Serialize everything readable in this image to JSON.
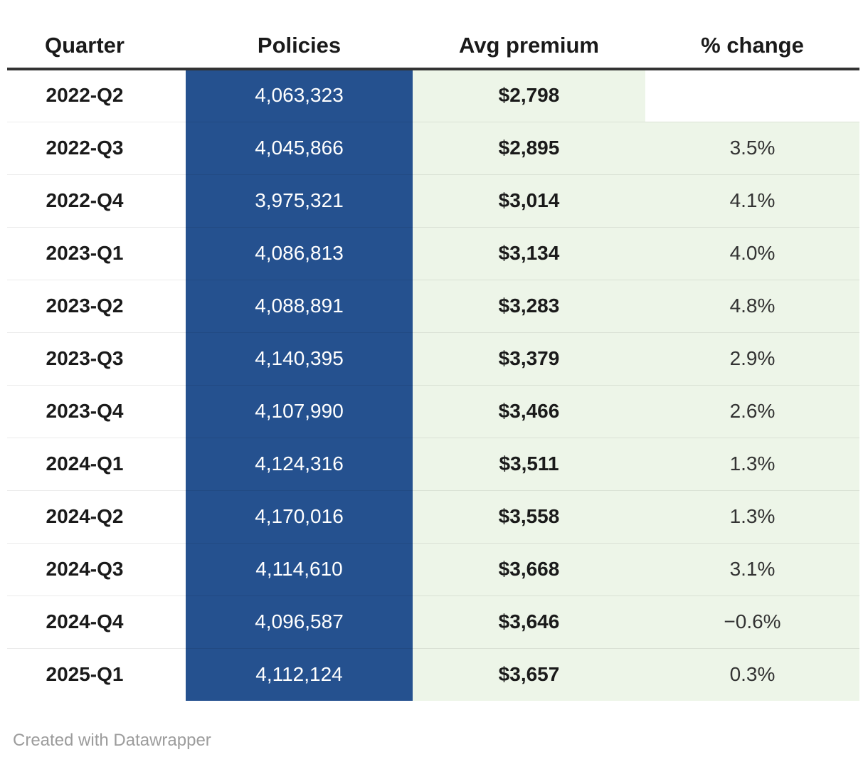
{
  "table": {
    "columns": [
      {
        "id": "quarter",
        "label": "Quarter"
      },
      {
        "id": "policies",
        "label": "Policies"
      },
      {
        "id": "avg_premium",
        "label": "Avg premium"
      },
      {
        "id": "pct_change",
        "label": "% change"
      }
    ],
    "rows": [
      {
        "quarter": "2022-Q2",
        "policies": "4,063,323",
        "avg_premium": "$2,798",
        "pct_change": ""
      },
      {
        "quarter": "2022-Q3",
        "policies": "4,045,866",
        "avg_premium": "$2,895",
        "pct_change": "3.5%"
      },
      {
        "quarter": "2022-Q4",
        "policies": "3,975,321",
        "avg_premium": "$3,014",
        "pct_change": "4.1%"
      },
      {
        "quarter": "2023-Q1",
        "policies": "4,086,813",
        "avg_premium": "$3,134",
        "pct_change": "4.0%"
      },
      {
        "quarter": "2023-Q2",
        "policies": "4,088,891",
        "avg_premium": "$3,283",
        "pct_change": "4.8%"
      },
      {
        "quarter": "2023-Q3",
        "policies": "4,140,395",
        "avg_premium": "$3,379",
        "pct_change": "2.9%"
      },
      {
        "quarter": "2023-Q4",
        "policies": "4,107,990",
        "avg_premium": "$3,466",
        "pct_change": "2.6%"
      },
      {
        "quarter": "2024-Q1",
        "policies": "4,124,316",
        "avg_premium": "$3,511",
        "pct_change": "1.3%"
      },
      {
        "quarter": "2024-Q2",
        "policies": "4,170,016",
        "avg_premium": "$3,558",
        "pct_change": "1.3%"
      },
      {
        "quarter": "2024-Q3",
        "policies": "4,114,610",
        "avg_premium": "$3,668",
        "pct_change": "3.1%"
      },
      {
        "quarter": "2024-Q4",
        "policies": "4,096,587",
        "avg_premium": "$3,646",
        "pct_change": "−0.6%"
      },
      {
        "quarter": "2025-Q1",
        "policies": "4,112,124",
        "avg_premium": "$3,657",
        "pct_change": "0.3%"
      }
    ]
  },
  "footer": {
    "attribution": "Created with Datawrapper"
  },
  "colors": {
    "policies_fill": "#25518f",
    "premium_fill": "#edf5e8",
    "header_rule": "#333333",
    "policies_text": "#ffffff",
    "body_text": "#1a1a1a",
    "pct_text": "#333333",
    "attribution_text": "#9c9c9c"
  },
  "chart_data": {
    "type": "table",
    "columns": [
      "Quarter",
      "Policies",
      "Avg premium",
      "% change"
    ],
    "rows": [
      [
        "2022-Q2",
        4063323,
        2798,
        null
      ],
      [
        "2022-Q3",
        4045866,
        2895,
        3.5
      ],
      [
        "2022-Q4",
        3975321,
        3014,
        4.1
      ],
      [
        "2023-Q1",
        4086813,
        3134,
        4.0
      ],
      [
        "2023-Q2",
        4088891,
        3283,
        4.8
      ],
      [
        "2023-Q3",
        4140395,
        3379,
        2.9
      ],
      [
        "2023-Q4",
        4107990,
        3466,
        2.6
      ],
      [
        "2024-Q1",
        4124316,
        3511,
        1.3
      ],
      [
        "2024-Q2",
        4170016,
        3558,
        1.3
      ],
      [
        "2024-Q3",
        4114610,
        3668,
        3.1
      ],
      [
        "2024-Q4",
        4096587,
        3646,
        -0.6
      ],
      [
        "2025-Q1",
        4112124,
        3657,
        0.3
      ]
    ],
    "notes": "Policies column rendered as solid blue heatmap fill; Avg premium and % change columns rendered with light green fill; first-row % change cell is empty with no fill."
  }
}
